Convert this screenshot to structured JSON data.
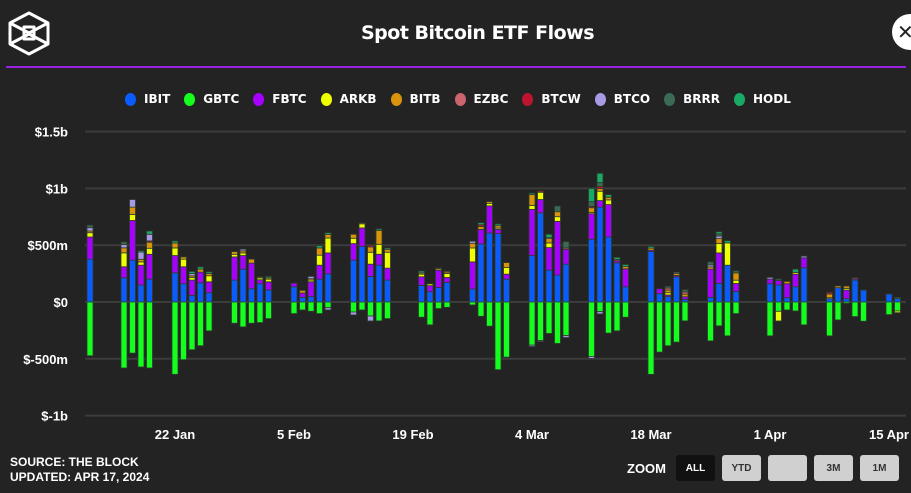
{
  "header": {
    "title": "Spot Bitcoin ETF Flows",
    "close_icon": "close-icon",
    "logo": "the-block-logo"
  },
  "footer": {
    "source": "SOURCE: THE BLOCK",
    "updated": "UPDATED: APR 17, 2024"
  },
  "zoom": {
    "label": "ZOOM",
    "buttons": [
      "ALL",
      "YTD",
      "",
      "3M",
      "1M"
    ],
    "active": "ALL"
  },
  "colors": {
    "accent_rule": "#9b1fe0",
    "background": "#232323"
  },
  "chart_data": {
    "type": "bar",
    "stacked": true,
    "title": "Spot Bitcoin ETF Flows",
    "ylim": [
      -1000,
      1500
    ],
    "yunit": "USD millions",
    "y_ticks": [
      {
        "v": 1500,
        "label": "$1.5b"
      },
      {
        "v": 1000,
        "label": "$1b"
      },
      {
        "v": 500,
        "label": "$500m"
      },
      {
        "v": 0,
        "label": "$0"
      },
      {
        "v": -500,
        "label": "$-500m"
      },
      {
        "v": -1000,
        "label": "$-1b"
      }
    ],
    "x_ticks": [
      {
        "d": "2024-01-22",
        "label": "22 Jan"
      },
      {
        "d": "2024-02-05",
        "label": "5 Feb"
      },
      {
        "d": "2024-02-19",
        "label": "19 Feb"
      },
      {
        "d": "2024-03-04",
        "label": "4 Mar"
      },
      {
        "d": "2024-03-18",
        "label": "18 Mar"
      },
      {
        "d": "2024-04-01",
        "label": "1 Apr"
      },
      {
        "d": "2024-04-15",
        "label": "15 Apr"
      }
    ],
    "grid": true,
    "legend": "top",
    "dates": [
      "2024-01-12",
      "2024-01-16",
      "2024-01-17",
      "2024-01-18",
      "2024-01-19",
      "2024-01-22",
      "2024-01-23",
      "2024-01-24",
      "2024-01-25",
      "2024-01-26",
      "2024-01-29",
      "2024-01-30",
      "2024-01-31",
      "2024-02-01",
      "2024-02-02",
      "2024-02-05",
      "2024-02-06",
      "2024-02-07",
      "2024-02-08",
      "2024-02-09",
      "2024-02-12",
      "2024-02-13",
      "2024-02-14",
      "2024-02-15",
      "2024-02-16",
      "2024-02-20",
      "2024-02-21",
      "2024-02-22",
      "2024-02-23",
      "2024-02-26",
      "2024-02-27",
      "2024-02-28",
      "2024-02-29",
      "2024-03-01",
      "2024-03-04",
      "2024-03-05",
      "2024-03-06",
      "2024-03-07",
      "2024-03-08",
      "2024-03-11",
      "2024-03-12",
      "2024-03-13",
      "2024-03-14",
      "2024-03-15",
      "2024-03-18",
      "2024-03-19",
      "2024-03-20",
      "2024-03-21",
      "2024-03-22",
      "2024-03-25",
      "2024-03-26",
      "2024-03-27",
      "2024-03-28",
      "2024-04-01",
      "2024-04-02",
      "2024-04-03",
      "2024-04-04",
      "2024-04-05",
      "2024-04-08",
      "2024-04-09",
      "2024-04-10",
      "2024-04-11",
      "2024-04-12",
      "2024-04-15",
      "2024-04-16"
    ],
    "series": [
      {
        "name": "IBIT",
        "color": "#0a5cff",
        "values": [
          377,
          213,
          368,
          149,
          201,
          257,
          161,
          58,
          169,
          82,
          193,
          289,
          117,
          161,
          105,
          134,
          41,
          47,
          201,
          248,
          368,
          488,
          225,
          324,
          193,
          146,
          91,
          128,
          172,
          114,
          511,
          607,
          602,
          201,
          409,
          785,
          280,
          237,
          333,
          552,
          835,
          572,
          345,
          134,
          444,
          73,
          47,
          222,
          23,
          41,
          164,
          324,
          93,
          161,
          149,
          38,
          134,
          301,
          29,
          126,
          29,
          193,
          105,
          70,
          29
        ]
      },
      {
        "name": "GBTC",
        "color": "#14ff1e",
        "values": [
          -473,
          -581,
          -450,
          -572,
          -581,
          -637,
          -508,
          -420,
          -385,
          -254,
          -187,
          -219,
          -187,
          -181,
          -146,
          -102,
          -70,
          -82,
          -102,
          -50,
          -88,
          -70,
          -123,
          -166,
          -146,
          -134,
          -201,
          -58,
          -47,
          -26,
          -126,
          -213,
          -596,
          -485,
          -380,
          -339,
          -277,
          -365,
          -295,
          -479,
          -85,
          -274,
          -254,
          -134,
          -637,
          -441,
          -385,
          -353,
          -166,
          -342,
          -210,
          -298,
          -102,
          -298,
          -82,
          -70,
          -79,
          -201,
          -298,
          -158,
          -12,
          -128,
          -169,
          -111,
          -79
        ]
      },
      {
        "name": "FBTC",
        "color": "#a600ff",
        "values": [
          195,
          97,
          350,
          175,
          219,
          152,
          149,
          135,
          94,
          96,
          204,
          120,
          225,
          35,
          73,
          32,
          38,
          131,
          123,
          184,
          146,
          164,
          108,
          96,
          105,
          76,
          53,
          152,
          44,
          239,
          128,
          239,
          38,
          44,
          406,
          117,
          199,
          473,
          131,
          225,
          58,
          286,
          18,
          158,
          12,
          44,
          15,
          12,
          23,
          248,
          268,
          0,
          70,
          41,
          41,
          123,
          111,
          88,
          0,
          0,
          76,
          12,
          0,
          0,
          0
        ]
      },
      {
        "name": "ARKB",
        "color": "#f0ff00",
        "values": [
          38,
          123,
          53,
          29,
          53,
          67,
          67,
          23,
          0,
          53,
          23,
          23,
          0,
          18,
          23,
          0,
          0,
          15,
          88,
          131,
          47,
          38,
          105,
          88,
          140,
          23,
          15,
          12,
          35,
          123,
          0,
          23,
          12,
          58,
          35,
          64,
          41,
          41,
          0,
          12,
          82,
          41,
          0,
          0,
          0,
          0,
          20,
          0,
          0,
          0,
          82,
          196,
          29,
          0,
          -85,
          0,
          15,
          0,
          9,
          0,
          15,
          0,
          0,
          0,
          -15
        ]
      },
      {
        "name": "BITB",
        "color": "#d9940c",
        "values": [
          15,
          44,
          64,
          23,
          53,
          44,
          20,
          15,
          26,
          20,
          23,
          18,
          35,
          6,
          12,
          0,
          23,
          12,
          64,
          32,
          35,
          6,
          47,
          123,
          26,
          12,
          0,
          0,
          12,
          41,
          26,
          15,
          20,
          44,
          96,
          0,
          38,
          44,
          0,
          41,
          23,
          23,
          0,
          20,
          18,
          0,
          23,
          18,
          23,
          20,
          44,
          0,
          64,
          0,
          0,
          20,
          0,
          0,
          32,
          15,
          20,
          9,
          0,
          0,
          0
        ]
      },
      {
        "name": "EZBC",
        "color": "#cc6470",
        "values": [
          0,
          0,
          0,
          0,
          0,
          0,
          0,
          0,
          0,
          0,
          0,
          0,
          0,
          0,
          0,
          0,
          0,
          0,
          0,
          0,
          0,
          0,
          0,
          0,
          0,
          0,
          0,
          0,
          9,
          0,
          0,
          0,
          0,
          0,
          0,
          0,
          0,
          0,
          12,
          0,
          0,
          0,
          12,
          0,
          0,
          0,
          18,
          0,
          20,
          0,
          0,
          0,
          0,
          0,
          0,
          0,
          0,
          0,
          0,
          0,
          0,
          0,
          0,
          0,
          0
        ]
      },
      {
        "name": "BTCW",
        "color": "#bd1530",
        "values": [
          0,
          0,
          0,
          0,
          12,
          0,
          0,
          0,
          0,
          0,
          0,
          0,
          0,
          0,
          0,
          0,
          0,
          0,
          0,
          0,
          0,
          0,
          15,
          0,
          0,
          0,
          0,
          9,
          0,
          0,
          15,
          0,
          0,
          0,
          0,
          12,
          0,
          0,
          0,
          12,
          18,
          0,
          0,
          0,
          0,
          0,
          0,
          0,
          0,
          0,
          0,
          0,
          0,
          0,
          0,
          0,
          0,
          0,
          15,
          0,
          0,
          0,
          0,
          0,
          0
        ]
      },
      {
        "name": "BTCO",
        "color": "#a99ae8",
        "values": [
          29,
          29,
          67,
          64,
          58,
          0,
          0,
          20,
          0,
          0,
          0,
          15,
          0,
          0,
          0,
          0,
          0,
          20,
          0,
          -20,
          -26,
          0,
          -44,
          0,
          0,
          0,
          0,
          0,
          0,
          18,
          0,
          0,
          0,
          0,
          -12,
          -9,
          9,
          0,
          -18,
          -18,
          -20,
          0,
          0,
          0,
          0,
          0,
          0,
          9,
          0,
          18,
          23,
          0,
          0,
          15,
          0,
          0,
          0,
          15,
          0,
          0,
          0,
          0,
          0,
          0,
          0
        ]
      },
      {
        "name": "BRRR",
        "color": "#3b6a55",
        "values": [
          23,
          23,
          0,
          0,
          0,
          0,
          0,
          0,
          0,
          0,
          0,
          0,
          0,
          0,
          0,
          0,
          0,
          0,
          0,
          0,
          0,
          0,
          0,
          0,
          0,
          0,
          0,
          0,
          0,
          0,
          0,
          0,
          0,
          0,
          0,
          0,
          0,
          50,
          55,
          41,
          35,
          0,
          0,
          0,
          0,
          0,
          15,
          0,
          20,
          26,
          20,
          0,
          20,
          0,
          12,
          0,
          0,
          0,
          0,
          0,
          0,
          0,
          0,
          0,
          12
        ]
      },
      {
        "name": "HODL",
        "color": "#1aa865",
        "values": [
          0,
          0,
          0,
          12,
          29,
          18,
          0,
          18,
          20,
          15,
          0,
          0,
          0,
          0,
          12,
          0,
          0,
          0,
          20,
          15,
          0,
          0,
          0,
          12,
          12,
          15,
          0,
          0,
          0,
          0,
          18,
          0,
          15,
          0,
          12,
          0,
          29,
          0,
          0,
          117,
          82,
          23,
          18,
          18,
          15,
          0,
          0,
          0,
          0,
          0,
          18,
          20,
          0,
          0,
          0,
          0,
          29,
          0,
          0,
          0,
          0,
          0,
          0,
          0,
          0
        ]
      }
    ]
  }
}
